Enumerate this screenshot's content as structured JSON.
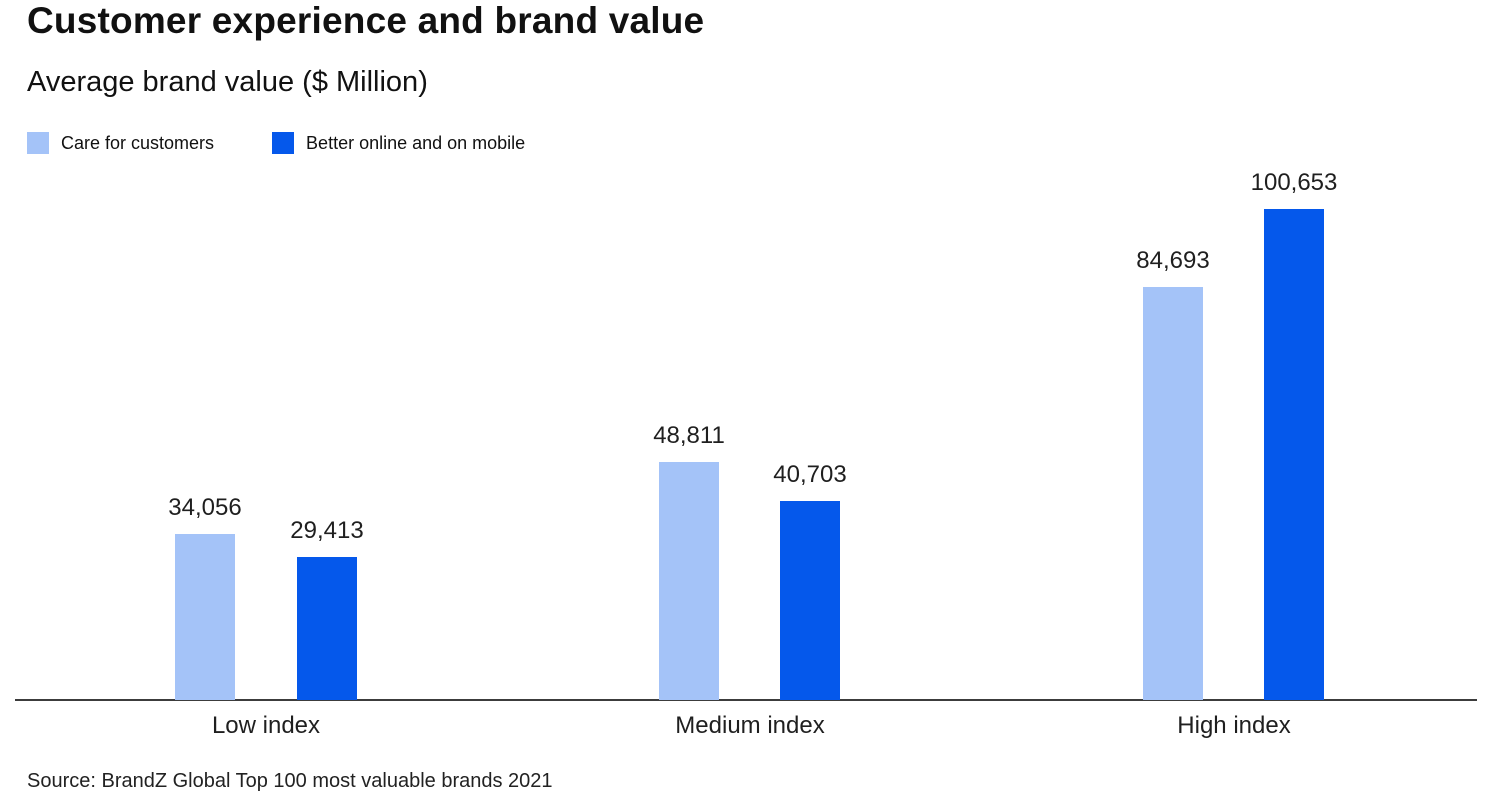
{
  "header": {
    "title": "Customer experience and brand value",
    "subtitle": "Average brand value ($ Million)"
  },
  "legend": [
    {
      "label": "Care for customers",
      "color": "#A4C3F8"
    },
    {
      "label": "Better online and on mobile",
      "color": "#0558EB"
    }
  ],
  "chart_data": {
    "type": "bar",
    "title": "Customer experience and brand value",
    "subtitle": "Average brand value ($ Million)",
    "categories": [
      "Low index",
      "Medium index",
      "High index"
    ],
    "series": [
      {
        "name": "Care for customers",
        "color": "#A4C3F8",
        "values": [
          34056,
          48811,
          84693
        ],
        "labels": [
          "34,056",
          "48,811",
          "84,693"
        ]
      },
      {
        "name": "Better online and on mobile",
        "color": "#0558EB",
        "values": [
          29413,
          40703,
          100653
        ],
        "labels": [
          "29,413",
          "40,703",
          "100,653"
        ]
      }
    ],
    "ylim": [
      0,
      103000
    ],
    "grid": false,
    "value_labels_shown": true,
    "legend_position": "top-left"
  },
  "footer": {
    "source": "Source: BrandZ Global Top 100 most valuable brands 2021"
  }
}
